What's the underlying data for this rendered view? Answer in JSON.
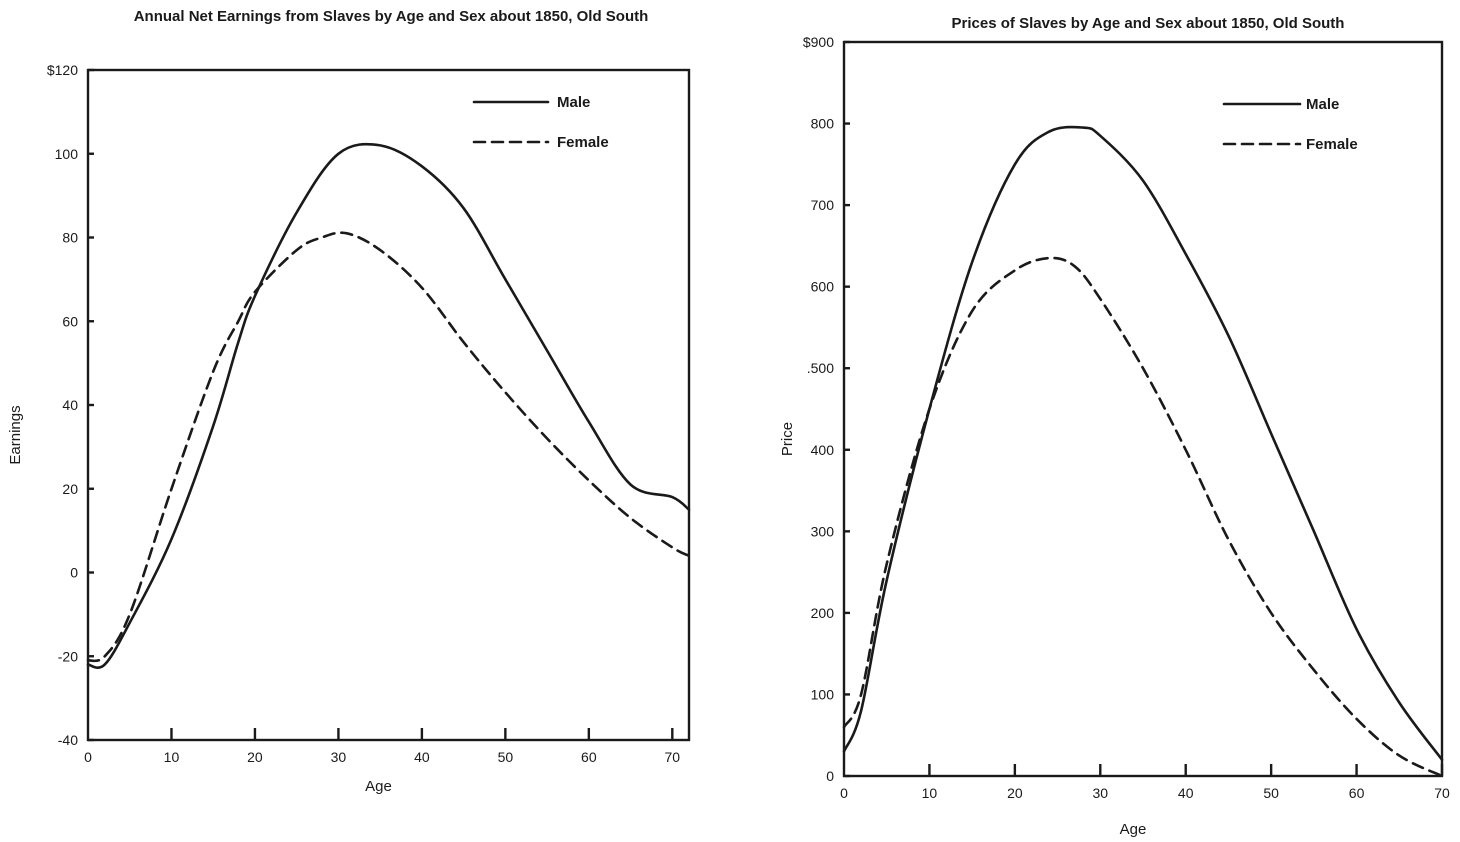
{
  "chart_data": [
    {
      "type": "line",
      "title": "Annual Net Earnings from Slaves by Age and Sex about 1850, Old South",
      "xlabel": "Age",
      "ylabel": "Earnings",
      "xlim": [
        0,
        72
      ],
      "ylim": [
        -40,
        120
      ],
      "x_ticks": [
        "0",
        "10",
        "20",
        "30",
        "40",
        "50",
        "60",
        "70"
      ],
      "y_ticks": [
        {
          "value": 120,
          "label": "$120"
        },
        {
          "value": 100,
          "label": "100"
        },
        {
          "value": 80,
          "label": "80"
        },
        {
          "value": 60,
          "label": "60"
        },
        {
          "value": 40,
          "label": "40"
        },
        {
          "value": 20,
          "label": "20"
        },
        {
          "value": 0,
          "label": "0"
        },
        {
          "value": -20,
          "label": "-20"
        },
        {
          "value": -40,
          "label": "-40"
        }
      ],
      "grid": false,
      "legend_position": "top-right",
      "series": [
        {
          "name": "Male",
          "style": "solid",
          "x": [
            0,
            2,
            5,
            10,
            15,
            18,
            20,
            25,
            30,
            35,
            40,
            45,
            50,
            55,
            60,
            65,
            70,
            72
          ],
          "y": [
            -22,
            -22,
            -12,
            8,
            35,
            55,
            66,
            86,
            100,
            102,
            97,
            87,
            70,
            53,
            36,
            21,
            18,
            15
          ]
        },
        {
          "name": "Female",
          "style": "dashed",
          "x": [
            0,
            2,
            5,
            10,
            15,
            18,
            20,
            25,
            28,
            31,
            35,
            40,
            45,
            50,
            55,
            60,
            65,
            70,
            72
          ],
          "y": [
            -21,
            -20,
            -10,
            20,
            48,
            60,
            67,
            77,
            80,
            81,
            77,
            68,
            55,
            43,
            32,
            22,
            13,
            6,
            4
          ]
        }
      ]
    },
    {
      "type": "line",
      "title": "Prices of Slaves by Age and Sex about 1850, Old South",
      "xlabel": "Age",
      "ylabel": "Price",
      "xlim": [
        0,
        70
      ],
      "ylim": [
        0,
        900
      ],
      "x_ticks": [
        "0",
        "10",
        "20",
        "30",
        "40",
        "50",
        "60",
        "70"
      ],
      "y_ticks": [
        {
          "value": 900,
          "label": "$900"
        },
        {
          "value": 800,
          "label": "800"
        },
        {
          "value": 700,
          "label": "700"
        },
        {
          "value": 600,
          "label": "600"
        },
        {
          "value": 500,
          "label": ".500"
        },
        {
          "value": 400,
          "label": "400"
        },
        {
          "value": 300,
          "label": "300"
        },
        {
          "value": 200,
          "label": "200"
        },
        {
          "value": 100,
          "label": "100"
        },
        {
          "value": 0,
          "label": "0"
        }
      ],
      "grid": false,
      "legend_position": "top-right",
      "series": [
        {
          "name": "Male",
          "style": "solid",
          "x": [
            0,
            2,
            5,
            10,
            15,
            20,
            24,
            28,
            30,
            35,
            40,
            45,
            50,
            55,
            60,
            65,
            70
          ],
          "y": [
            30,
            80,
            240,
            450,
            630,
            750,
            790,
            795,
            785,
            730,
            640,
            540,
            420,
            300,
            180,
            90,
            20
          ]
        },
        {
          "name": "Female",
          "style": "dashed",
          "x": [
            0,
            2,
            5,
            10,
            15,
            20,
            24,
            27,
            30,
            35,
            40,
            45,
            50,
            55,
            60,
            65,
            70
          ],
          "y": [
            60,
            100,
            260,
            450,
            570,
            620,
            635,
            625,
            585,
            500,
            400,
            290,
            200,
            130,
            70,
            25,
            0
          ]
        }
      ]
    }
  ]
}
